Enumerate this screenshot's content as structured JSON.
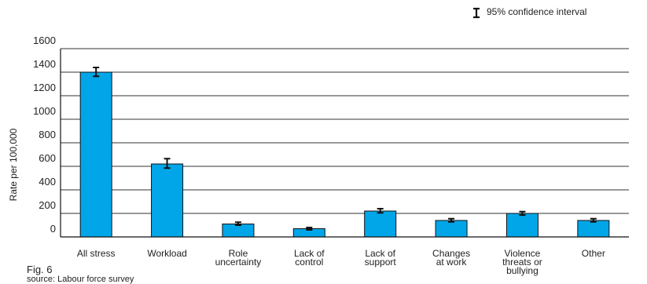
{
  "figure": {
    "label": "Fig. 6",
    "source": "source: Labour force survey"
  },
  "legend": {
    "label": "95%  confidence interval",
    "icon": "error-bar-icon"
  },
  "colors": {
    "bar_fill": "#00a6e8",
    "bar_stroke": "#111111",
    "grid": "#333333",
    "error_bar": "#111111"
  },
  "chart_data": {
    "type": "bar",
    "title": "",
    "xlabel": "",
    "ylabel": "Rate per 100,000",
    "ylim": [
      0,
      1600
    ],
    "yticks": [
      0,
      200,
      400,
      600,
      800,
      1000,
      1200,
      1400,
      1600
    ],
    "grid": true,
    "legend_position": "top-right",
    "categories": [
      [
        "All stress"
      ],
      [
        "Workload"
      ],
      [
        "Role",
        "uncertainty"
      ],
      [
        "Lack of",
        "control"
      ],
      [
        "Lack of",
        "support"
      ],
      [
        "Changes",
        "at work"
      ],
      [
        "Violence",
        "threats or",
        "bullying"
      ],
      [
        "Other"
      ]
    ],
    "values": [
      1400,
      620,
      110,
      70,
      220,
      140,
      200,
      140
    ],
    "ci_lower": [
      1365,
      585,
      100,
      60,
      205,
      128,
      186,
      128
    ],
    "ci_upper": [
      1440,
      665,
      125,
      80,
      240,
      155,
      215,
      155
    ]
  }
}
